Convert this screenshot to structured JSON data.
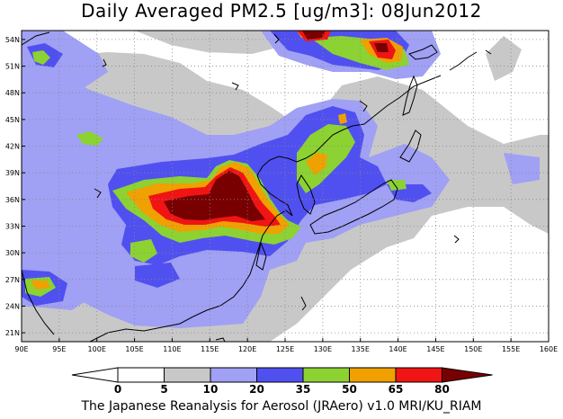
{
  "title": "Daily Averaged PM2.5 [ug/m3]: 08Jun2012",
  "footer": "The Japanese Reanalysis for Aerosol (JRAero) v1.0 MRI/KU_RIAM",
  "map": {
    "lon_range": [
      90,
      160
    ],
    "lat_range": [
      20,
      55
    ],
    "lon_ticks": [
      90,
      95,
      100,
      105,
      110,
      115,
      120,
      125,
      130,
      135,
      140,
      145,
      150,
      155,
      160
    ],
    "lon_labels": [
      "90E",
      "95E",
      "100E",
      "105E",
      "110E",
      "115E",
      "120E",
      "125E",
      "130E",
      "135E",
      "140E",
      "145E",
      "150E",
      "155E",
      "160E"
    ],
    "lat_ticks": [
      21,
      24,
      27,
      30,
      33,
      36,
      39,
      42,
      45,
      48,
      51,
      54
    ],
    "lat_labels": [
      "21N",
      "24N",
      "27N",
      "30N",
      "33N",
      "36N",
      "39N",
      "42N",
      "45N",
      "48N",
      "51N",
      "54N"
    ],
    "grid": "dotted"
  },
  "colorbar": {
    "levels": [
      "0",
      "5",
      "10",
      "20",
      "35",
      "50",
      "65",
      "80"
    ],
    "colors": [
      "#ffffff",
      "#c8c8c8",
      "#a0a0f5",
      "#5050f0",
      "#8cd232",
      "#f0a000",
      "#f01414",
      "#780000"
    ]
  },
  "shade_colors": {
    "bin_5_10": "#c8c8c8",
    "bin_10_20": "#a0a0f5",
    "bin_20_35": "#5050f0",
    "bin_35_50": "#8cd232",
    "bin_50_65": "#f0a000",
    "bin_65_80": "#f01414",
    "bin_80_plus": "#780000"
  }
}
